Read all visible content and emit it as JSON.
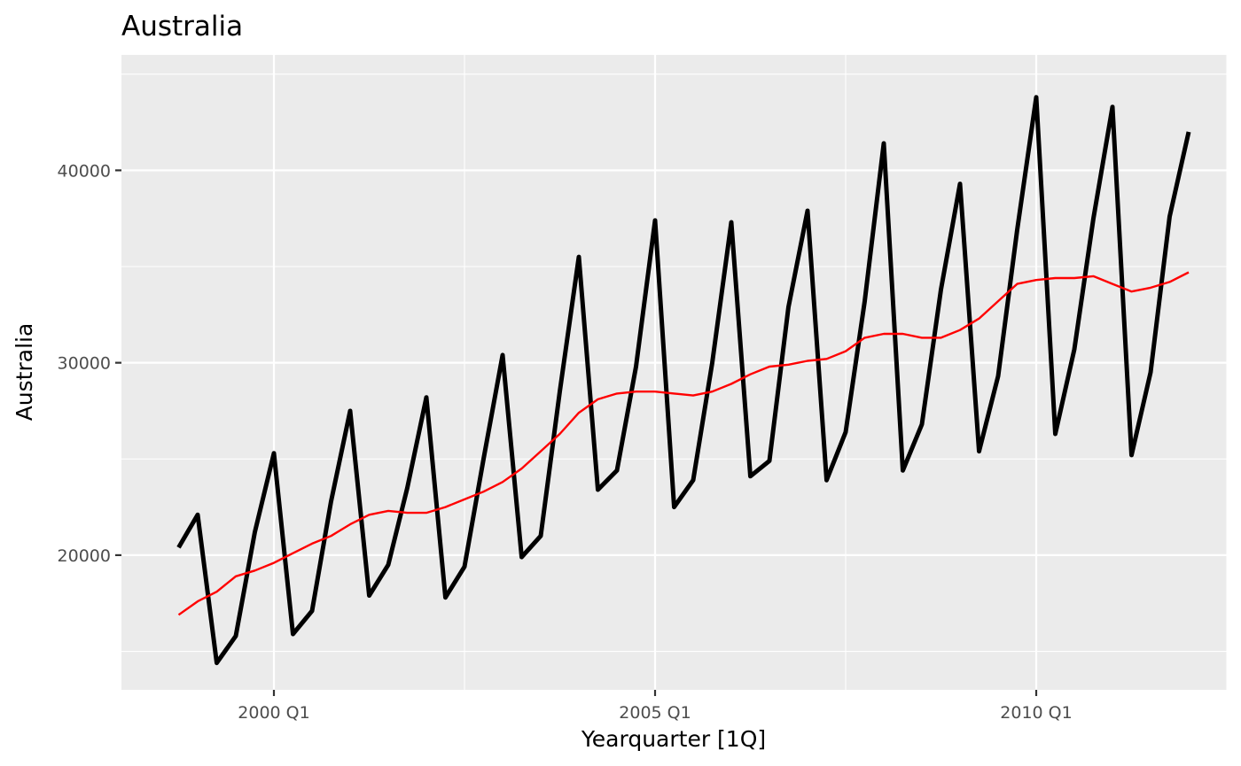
{
  "chart_data": {
    "type": "line",
    "title": "Australia",
    "xlabel": "Yearquarter [1Q]",
    "ylabel": "Australia",
    "x_tick_labels": [
      "2000 Q1",
      "2005 Q1",
      "2010 Q1"
    ],
    "y_tick_labels": [
      "20000",
      "30000",
      "40000"
    ],
    "x_start": "1998 Q4",
    "x_range": [
      "1998 Q1",
      "2012 Q3"
    ],
    "ylim": [
      13000,
      46000
    ],
    "grid": true,
    "series": [
      {
        "color": "#000000",
        "values": [
          20400,
          22100,
          14400,
          15800,
          21200,
          25300,
          15900,
          17100,
          22800,
          27500,
          17900,
          19500,
          23500,
          28200,
          17800,
          19400,
          25000,
          30400,
          19900,
          21000,
          28500,
          35500,
          23400,
          24400,
          29800,
          37400,
          22500,
          23900,
          30000,
          37300,
          24100,
          24900,
          32900,
          37900,
          23900,
          26400,
          33200,
          41400,
          24400,
          26800,
          33800,
          39300,
          25400,
          29300,
          36900,
          43800,
          26300,
          30700,
          37500,
          43300,
          25200,
          29500,
          37600,
          42000
        ]
      },
      {
        "color": "#ff0000",
        "values": [
          16900,
          17600,
          18100,
          18900,
          19200,
          19600,
          20100,
          20600,
          21000,
          21600,
          22100,
          22300,
          22200,
          22200,
          22500,
          22900,
          23300,
          23800,
          24500,
          25400,
          26300,
          27400,
          28100,
          28400,
          28500,
          28500,
          28400,
          28300,
          28500,
          28900,
          29400,
          29800,
          29900,
          30100,
          30200,
          30600,
          31300,
          31500,
          31500,
          31300,
          31300,
          31700,
          32300,
          33200,
          34100,
          34300,
          34400,
          34400,
          34500,
          34100,
          33700,
          33900,
          34200,
          34700
        ]
      }
    ]
  }
}
